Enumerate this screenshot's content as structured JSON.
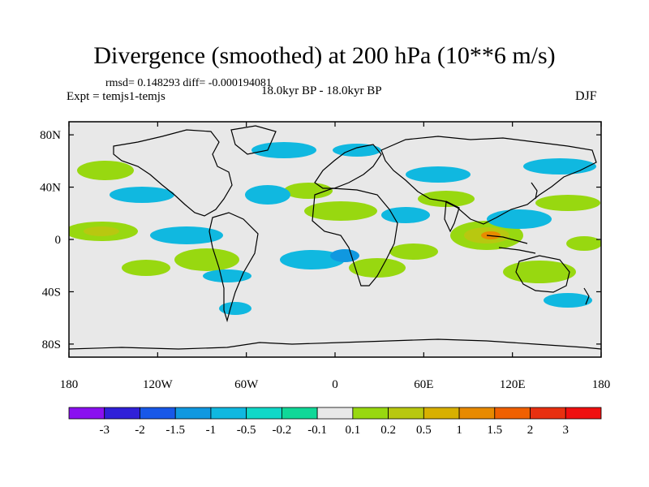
{
  "title": "Divergence (smoothed) at 200 hPa (10**6 m/s)",
  "stats": "rmsd= 0.148293 diff= -0.000194081",
  "expt": "Expt = temjs1-temjs",
  "period": "18.0kyr BP - 18.0kyr BP",
  "season": "DJF",
  "axes": {
    "lat_ticks": [
      "80N",
      "40N",
      "0",
      "40S",
      "80S"
    ],
    "lon_ticks": [
      "180",
      "120W",
      "60W",
      "0",
      "60E",
      "120E",
      "180"
    ]
  },
  "legend": {
    "labels": [
      "-3",
      "-2",
      "-1.5",
      "-1",
      "-0.5",
      "-0.2",
      "-0.1",
      "0.1",
      "0.2",
      "0.5",
      "1",
      "1.5",
      "2",
      "3"
    ],
    "colors": [
      "#8a10f0",
      "#3020d8",
      "#1858e8",
      "#1098e0",
      "#10b8e0",
      "#10d8c8",
      "#10d898",
      "#e8e8e8",
      "#98d810",
      "#b8c810",
      "#d8b000",
      "#e88a00",
      "#f06000",
      "#e83010",
      "#f01010"
    ]
  },
  "colors": {
    "background": "#e8e8e8",
    "coast": "#000000"
  }
}
